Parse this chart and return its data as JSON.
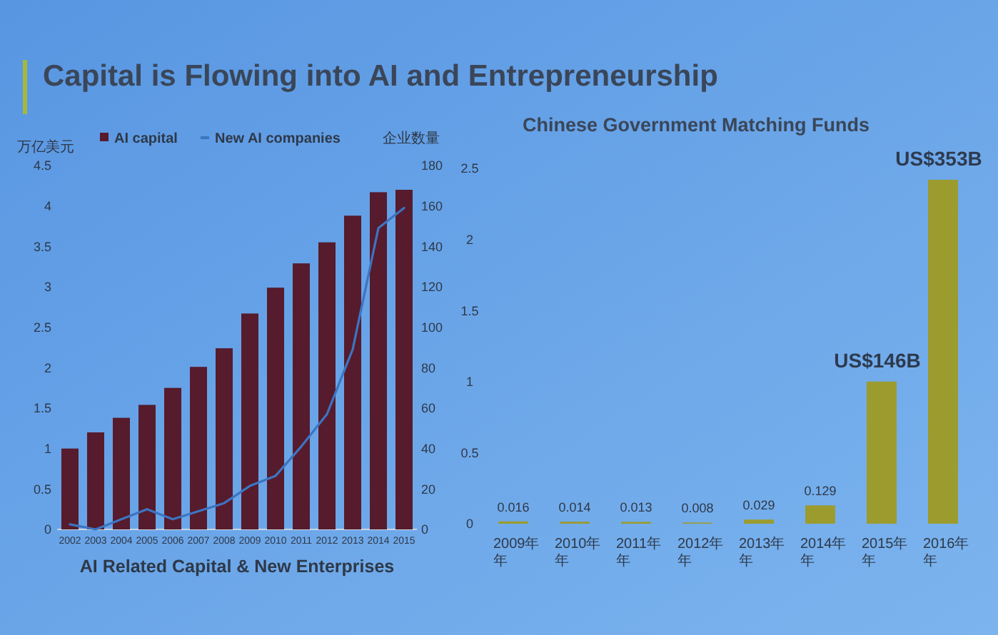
{
  "chart_data": [
    {
      "type": "bar",
      "title": "Capital is Flowing into AI and Entrepreneurship",
      "xlabel": "AI Related Capital & New Enterprises",
      "ylabel": "万亿美元",
      "y2label": "企业数量",
      "categories": [
        "2002",
        "2003",
        "2004",
        "2005",
        "2006",
        "2007",
        "2008",
        "2009",
        "2010",
        "2011",
        "2012",
        "2013",
        "2014",
        "2015"
      ],
      "series": [
        {
          "name": "AI capital",
          "color": "#561b2c",
          "values": [
            1.0,
            1.2,
            1.38,
            1.54,
            1.75,
            2.01,
            2.24,
            2.67,
            2.99,
            3.29,
            3.55,
            3.88,
            4.17,
            4.2
          ]
        },
        {
          "name": "New AI companies",
          "type": "line",
          "axis": "y2",
          "color": "#3d74c2",
          "values": [
            2.5,
            0,
            5,
            10,
            5,
            9,
            13,
            21.5,
            26.5,
            41,
            57,
            89,
            149,
            159
          ]
        }
      ],
      "ylim": [
        0,
        4.5
      ],
      "yticks": [
        0,
        0.5,
        1,
        1.5,
        2,
        2.5,
        3,
        3.5,
        4,
        4.5
      ],
      "y2lim": [
        0,
        180
      ],
      "y2ticks": [
        0,
        20,
        40,
        60,
        80,
        100,
        120,
        140,
        160,
        180
      ],
      "legend": "top"
    },
    {
      "type": "bar",
      "title": "Chinese Government Matching Funds",
      "categories": [
        "2009年年",
        "2010年年",
        "2011年年",
        "2012年年",
        "2013年年",
        "2014年年",
        "2015年年",
        "2016年年"
      ],
      "values": [
        0.016,
        0.014,
        0.013,
        0.008,
        0.029,
        0.129,
        1.0,
        2.42
      ],
      "value_labels": [
        "0.016",
        "0.014",
        "0.013",
        "0.008",
        "0.029",
        "0.129",
        "US$146B",
        "US$353B"
      ],
      "color": "#9c9b2e",
      "ylim": [
        0,
        2.5
      ],
      "yticks": [
        0,
        0.5,
        1,
        1.5,
        2,
        2.5
      ]
    }
  ]
}
